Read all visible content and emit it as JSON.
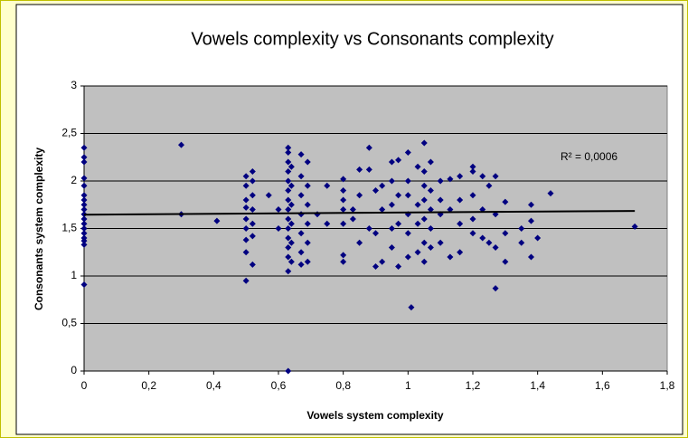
{
  "chart_data": {
    "type": "scatter",
    "title": "Vowels complexity vs Consonants complexity",
    "x_label": "Vowels system complexity",
    "y_label": "Consonants system complexity",
    "annotation": "R² = 0,0006",
    "color": "#000080",
    "grid": true,
    "xlim": [
      0,
      1.8
    ],
    "ylim": [
      0,
      3
    ],
    "xticks": [
      0,
      {
        "value": 0.2,
        "label": "0,2"
      },
      {
        "value": 0.4,
        "label": "0,4"
      },
      {
        "value": 0.6,
        "label": "0,6"
      },
      {
        "value": 0.8,
        "label": "0,8"
      },
      1,
      {
        "value": 1.2,
        "label": "1,2"
      },
      {
        "value": 1.4,
        "label": "1,4"
      },
      {
        "value": 1.6,
        "label": "1,6"
      },
      {
        "value": 1.8,
        "label": "1,8"
      }
    ],
    "yticks": [
      0,
      {
        "value": 0.5,
        "label": "0,5"
      },
      1,
      {
        "value": 1.5,
        "label": "1,5"
      },
      2,
      {
        "value": 2.5,
        "label": "2,5"
      },
      3
    ],
    "trendline": {
      "x": [
        0,
        1.7
      ],
      "y": [
        1.645,
        1.685
      ]
    },
    "x": [
      0,
      0,
      0,
      0,
      0,
      0,
      0,
      0,
      0,
      0,
      0,
      0,
      0,
      0,
      0,
      0,
      0,
      0,
      0.3,
      0.3,
      0.41,
      0.5,
      0.5,
      0.5,
      0.5,
      0.5,
      0.5,
      0.5,
      0.5,
      0.5,
      0.52,
      0.52,
      0.52,
      0.52,
      0.52,
      0.52,
      0.52,
      0.57,
      0.6,
      0.6,
      0.63,
      0.63,
      0.63,
      0.63,
      0.63,
      0.63,
      0.63,
      0.63,
      0.63,
      0.63,
      0.63,
      0.63,
      0.63,
      0.63,
      0.63,
      0.64,
      0.64,
      0.64,
      0.64,
      0.64,
      0.64,
      0.67,
      0.67,
      0.67,
      0.67,
      0.67,
      0.67,
      0.67,
      0.69,
      0.69,
      0.69,
      0.69,
      0.69,
      0.69,
      0.72,
      0.75,
      0.75,
      0.8,
      0.8,
      0.8,
      0.8,
      0.8,
      0.8,
      0.8,
      0.83,
      0.83,
      0.85,
      0.85,
      0.85,
      0.88,
      0.88,
      0.88,
      0.9,
      0.9,
      0.9,
      0.92,
      0.92,
      0.92,
      0.95,
      0.95,
      0.95,
      0.95,
      0.95,
      0.97,
      0.97,
      0.97,
      0.97,
      1.0,
      1.0,
      1.0,
      1.0,
      1.0,
      1.0,
      1.01,
      1.03,
      1.03,
      1.03,
      1.03,
      1.05,
      1.05,
      1.05,
      1.05,
      1.05,
      1.05,
      1.05,
      1.07,
      1.07,
      1.07,
      1.07,
      1.07,
      1.1,
      1.1,
      1.1,
      1.1,
      1.13,
      1.13,
      1.13,
      1.16,
      1.16,
      1.16,
      1.16,
      1.2,
      1.2,
      1.2,
      1.2,
      1.2,
      1.23,
      1.23,
      1.23,
      1.25,
      1.25,
      1.27,
      1.27,
      1.27,
      1.27,
      1.3,
      1.3,
      1.3,
      1.35,
      1.35,
      1.38,
      1.38,
      1.38,
      1.4,
      1.44,
      1.7
    ],
    "values": [
      0.91,
      1.33,
      1.37,
      1.4,
      1.45,
      1.5,
      1.55,
      1.6,
      1.65,
      1.7,
      1.75,
      1.8,
      1.85,
      1.95,
      2.03,
      2.2,
      2.25,
      2.35,
      2.38,
      1.65,
      1.58,
      0.95,
      1.25,
      1.38,
      1.5,
      1.6,
      1.72,
      1.8,
      1.95,
      2.05,
      1.12,
      1.42,
      1.55,
      1.7,
      1.85,
      2.0,
      2.1,
      1.85,
      1.5,
      1.7,
      0,
      1.05,
      1.2,
      1.3,
      1.4,
      1.5,
      1.6,
      1.7,
      1.8,
      1.9,
      2.0,
      2.1,
      2.2,
      2.3,
      2.35,
      1.15,
      1.35,
      1.55,
      1.75,
      1.95,
      2.15,
      1.12,
      1.25,
      1.45,
      1.65,
      1.85,
      2.05,
      2.28,
      1.15,
      1.35,
      1.55,
      1.75,
      1.95,
      2.2,
      1.65,
      1.55,
      1.95,
      1.15,
      1.22,
      1.55,
      1.7,
      1.8,
      1.9,
      2.02,
      1.6,
      1.7,
      1.35,
      1.85,
      2.12,
      1.5,
      2.35,
      2.12,
      1.1,
      1.45,
      1.9,
      1.15,
      1.7,
      1.95,
      1.3,
      1.5,
      1.75,
      2.0,
      2.2,
      1.1,
      1.55,
      1.85,
      2.22,
      1.2,
      1.45,
      1.65,
      1.85,
      2.0,
      2.3,
      0.67,
      1.25,
      1.55,
      1.75,
      2.15,
      1.15,
      1.35,
      1.6,
      1.8,
      1.95,
      2.1,
      2.4,
      1.3,
      1.5,
      1.7,
      1.9,
      2.2,
      1.35,
      1.65,
      1.8,
      2.0,
      1.2,
      1.7,
      2.02,
      1.25,
      1.55,
      1.8,
      2.05,
      1.45,
      1.6,
      1.85,
      2.1,
      2.15,
      1.4,
      1.7,
      2.05,
      1.35,
      1.95,
      0.87,
      1.3,
      1.65,
      2.05,
      1.15,
      1.45,
      1.78,
      1.35,
      1.5,
      1.2,
      1.58,
      1.75,
      1.4,
      1.87,
      1.52
    ]
  }
}
